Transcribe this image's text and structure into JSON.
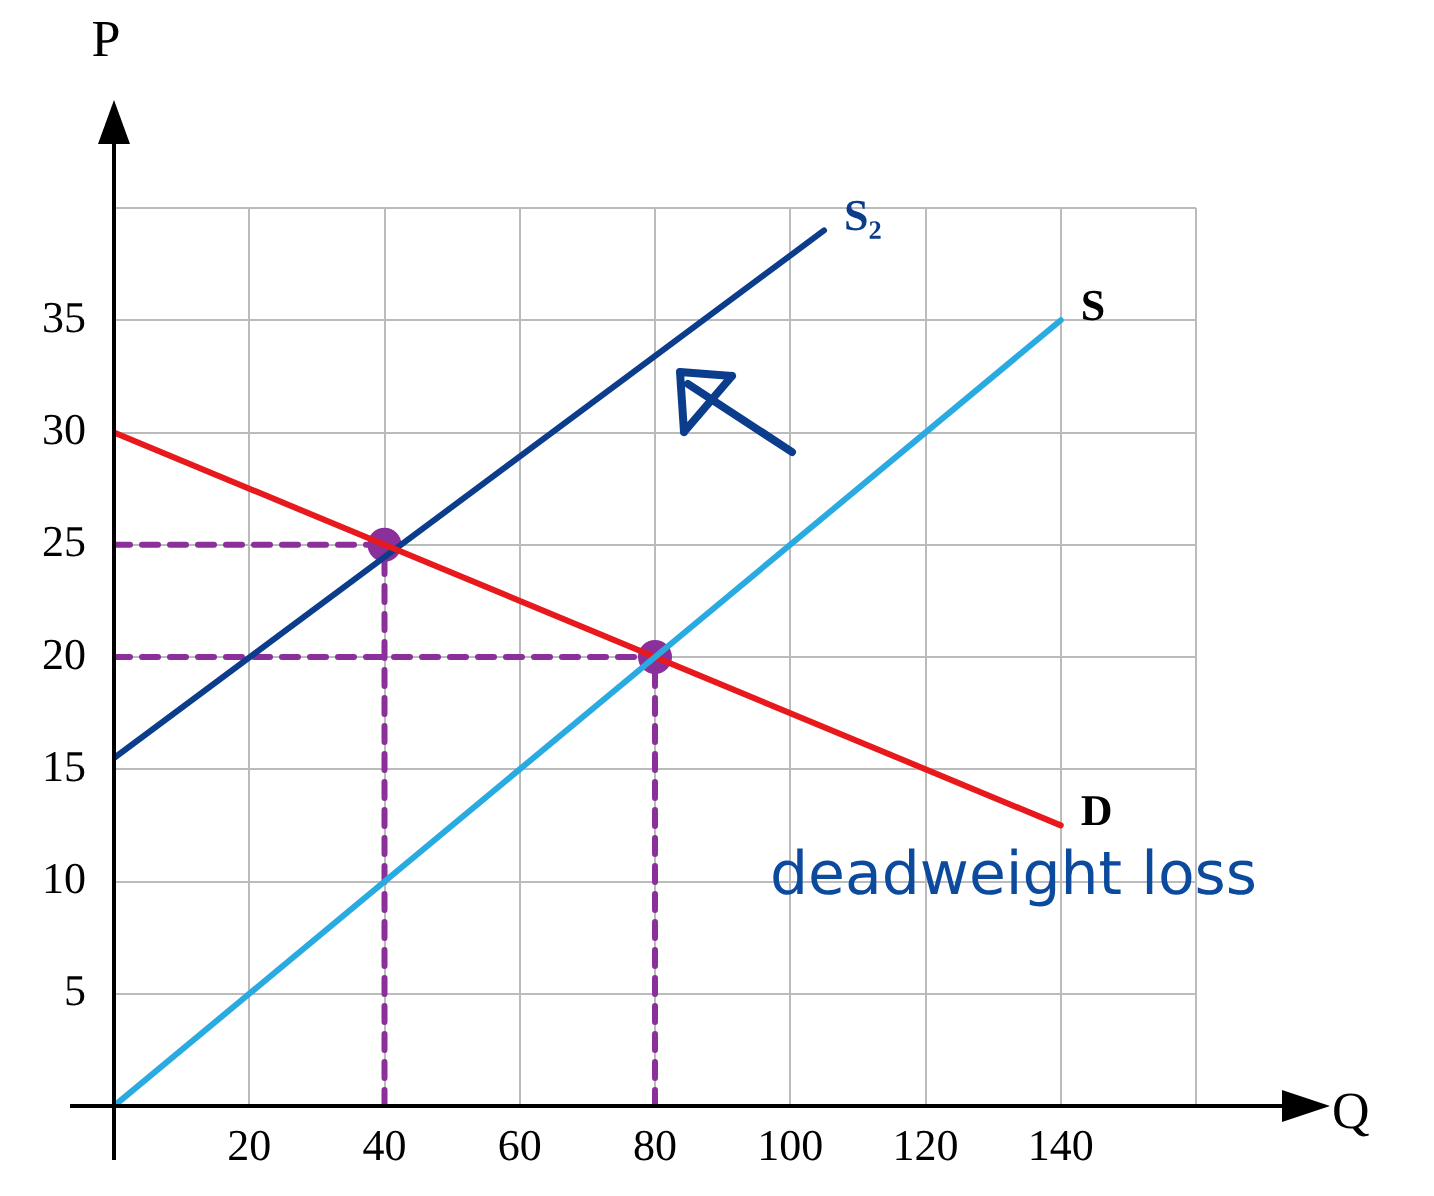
{
  "chart_data": {
    "type": "line",
    "xlabel": "Q",
    "ylabel": "P",
    "xlim": [
      0,
      160
    ],
    "ylim": [
      0,
      40
    ],
    "xticks": [
      20,
      40,
      60,
      80,
      100,
      120,
      140,
      {
        "value": 160,
        "label": null
      }
    ],
    "yticks": [
      5,
      10,
      15,
      20,
      25,
      30,
      35,
      {
        "value": 40,
        "label": null
      }
    ],
    "grid": true,
    "legend": false,
    "marker": "none",
    "line_style": "solid",
    "annotations": [
      "deadweight loss"
    ],
    "series": [
      {
        "name": "S",
        "type": "line",
        "color": "#29abe2",
        "x": [
          0,
          140
        ],
        "values": [
          0,
          35
        ]
      },
      {
        "name": "D",
        "type": "line",
        "color": "#e8191c",
        "x": [
          0,
          140
        ],
        "values": [
          30,
          12.5
        ]
      },
      {
        "name": "S₂",
        "type": "line",
        "color": "#0b3d8c",
        "x": [
          0,
          105
        ],
        "values": [
          15.5,
          39
        ]
      },
      {
        "type": "line",
        "color": "#8b2f9a",
        "line_style": "dashed",
        "x": [
          40,
          40
        ],
        "values": [
          0,
          25
        ]
      },
      {
        "type": "line",
        "color": "#8b2f9a",
        "line_style": "dashed",
        "x": [
          80,
          80
        ],
        "values": [
          0,
          20
        ]
      },
      {
        "type": "line",
        "color": "#8b2f9a",
        "line_style": "dashed",
        "x": [
          0,
          40
        ],
        "values": [
          25,
          25
        ]
      },
      {
        "type": "line",
        "color": "#8b2f9a",
        "line_style": "dashed",
        "x": [
          0,
          80
        ],
        "values": [
          20,
          20
        ]
      },
      {
        "type": "scatter",
        "color": "#8b2f9a",
        "marker": "circle",
        "x": [
          40,
          80
        ],
        "values": [
          25,
          20
        ]
      }
    ]
  }
}
